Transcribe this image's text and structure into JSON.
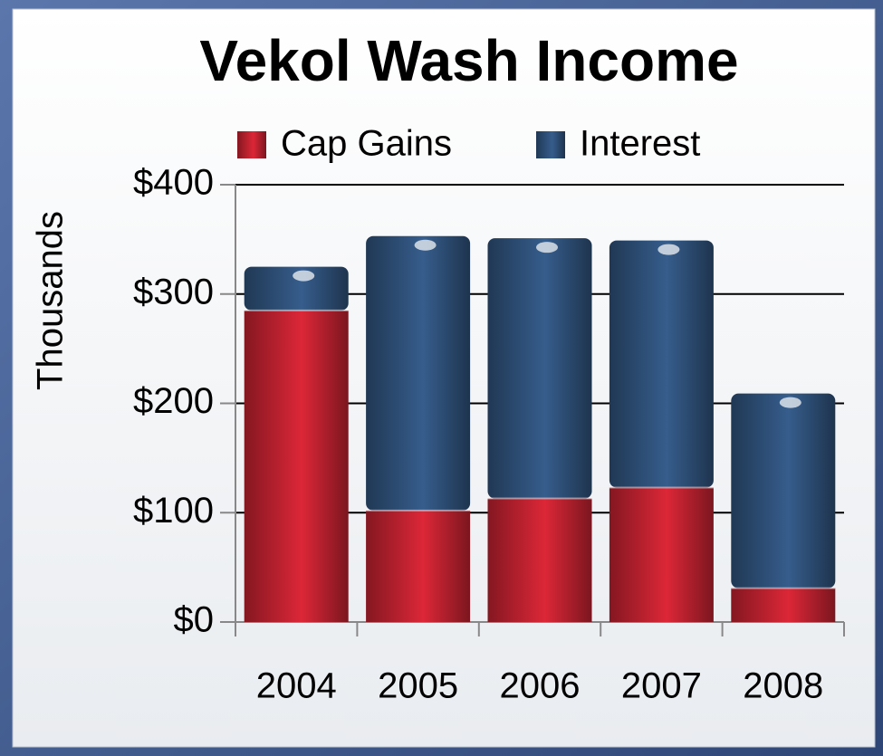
{
  "chart_data": {
    "type": "stacked_bar",
    "title": "Vekol Wash Income",
    "y_label": "Thousands",
    "categories": [
      "2004",
      "2005",
      "2006",
      "2007",
      "2008"
    ],
    "series": [
      {
        "name": "Cap Gains",
        "color": "#b01f2c",
        "values": [
          285,
          102,
          113,
          123,
          31
        ]
      },
      {
        "name": "Interest",
        "color": "#2b4a70",
        "values": [
          40,
          251,
          238,
          226,
          178
        ]
      }
    ],
    "ylim": [
      0,
      400
    ],
    "yticks": [
      {
        "value": 0,
        "label": "$0"
      },
      {
        "value": 100,
        "label": "$100"
      },
      {
        "value": 200,
        "label": "$200"
      },
      {
        "value": 300,
        "label": "$300"
      },
      {
        "value": 400,
        "label": "$400"
      }
    ],
    "grid": true,
    "legend": "top"
  }
}
